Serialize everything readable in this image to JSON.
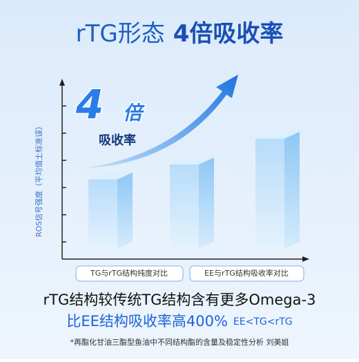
{
  "chart_data": {
    "type": "bar",
    "title": "rTG形态",
    "title_highlight": "4倍吸收率",
    "y_label": "ROS信号强度（平均值土标准误）",
    "callout": {
      "number": "4",
      "unit": "倍",
      "text": "吸收率"
    },
    "categories": [
      null,
      null,
      null
    ],
    "values": [
      3.3,
      3.85,
      4.8
    ],
    "color": "#9fd0f7",
    "ylim": [
      0.37,
      7
    ],
    "yticks": [
      1,
      2,
      3,
      4,
      5,
      6
    ],
    "buttons": [
      "TG与rTG结构纯度对比",
      "EE与rTG结构吸收率对比"
    ],
    "line1": "rTG结构较传统TG结构含有更多Omega-3",
    "line2": "比EE结构吸收率高400%",
    "line2_note": "EE<TG<rTG",
    "footnote": "*再酯化甘油三酯型鱼油中不同结构酯的含量及稳定性分析 刘美姐"
  }
}
